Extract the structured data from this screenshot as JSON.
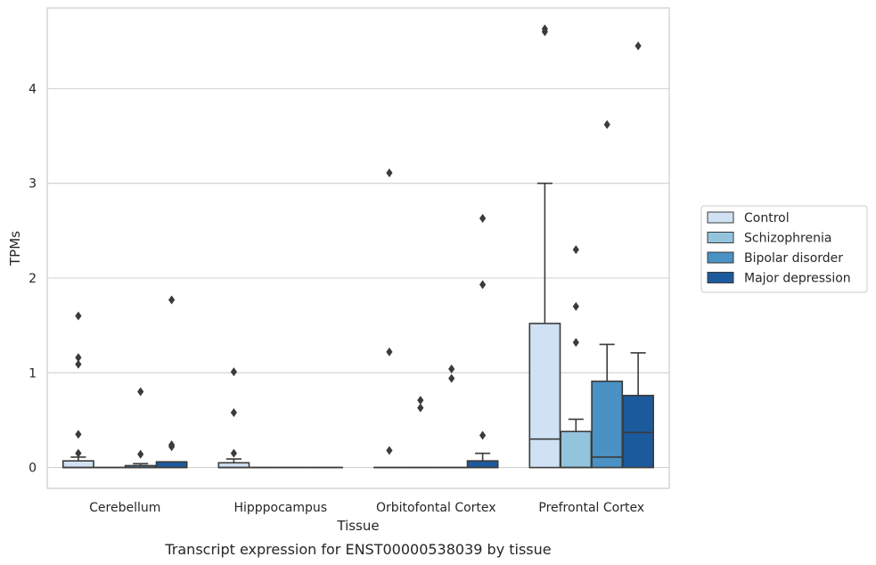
{
  "chart_data": {
    "type": "box",
    "title": "",
    "caption": "Transcript expression for ENST00000538039 by tissue",
    "xlabel": "Tissue",
    "ylabel": "TPMs",
    "ylim": [
      -0.22,
      4.85
    ],
    "yticks": [
      0,
      1,
      2,
      3,
      4
    ],
    "grid": "horizontal",
    "legend_position": "right",
    "categories": [
      "Cerebellum",
      "Hipppocampus",
      "Orbitofontal Cortex",
      "Prefrontal Cortex"
    ],
    "series": [
      {
        "name": "Control",
        "color": "#cfe1f2",
        "boxes": [
          {
            "q1": 0,
            "median": 0,
            "q3": 0.07,
            "whisker_low": 0,
            "whisker_high": 0.11,
            "outliers": [
              1.16,
              1.09,
              1.6,
              0.35,
              0.15
            ]
          },
          {
            "q1": 0,
            "median": 0,
            "q3": 0.05,
            "whisker_low": 0,
            "whisker_high": 0.09,
            "outliers": [
              1.01,
              0.58,
              0.15
            ]
          },
          {
            "q1": 0,
            "median": 0,
            "q3": 0,
            "whisker_low": 0,
            "whisker_high": 0,
            "outliers": [
              3.11,
              1.22,
              0.18
            ]
          },
          {
            "q1": 0,
            "median": 0.3,
            "q3": 1.52,
            "whisker_low": 0,
            "whisker_high": 3.0,
            "outliers": [
              4.63,
              4.6
            ]
          }
        ]
      },
      {
        "name": "Schizophrenia",
        "color": "#93c4de",
        "boxes": [
          {
            "q1": 0,
            "median": 0,
            "q3": 0,
            "whisker_low": 0,
            "whisker_high": 0,
            "outliers": []
          },
          {
            "q1": 0,
            "median": 0,
            "q3": 0,
            "whisker_low": 0,
            "whisker_high": 0,
            "outliers": []
          },
          {
            "q1": 0,
            "median": 0,
            "q3": 0,
            "whisker_low": 0,
            "whisker_high": 0,
            "outliers": [
              0.71,
              0.63
            ]
          },
          {
            "q1": 0,
            "median": 0,
            "q3": 0.38,
            "whisker_low": 0,
            "whisker_high": 0.51,
            "outliers": [
              2.3,
              1.7,
              1.32
            ]
          }
        ]
      },
      {
        "name": "Bipolar disorder",
        "color": "#4a91c4",
        "boxes": [
          {
            "q1": 0,
            "median": 0,
            "q3": 0.02,
            "whisker_low": 0,
            "whisker_high": 0.04,
            "outliers": [
              0.8,
              0.14
            ]
          },
          {
            "q1": 0,
            "median": 0,
            "q3": 0,
            "whisker_low": 0,
            "whisker_high": 0,
            "outliers": []
          },
          {
            "q1": 0,
            "median": 0,
            "q3": 0,
            "whisker_low": 0,
            "whisker_high": 0,
            "outliers": [
              1.04,
              0.94
            ]
          },
          {
            "q1": 0,
            "median": 0.11,
            "q3": 0.91,
            "whisker_low": 0,
            "whisker_high": 1.3,
            "outliers": [
              3.62
            ]
          }
        ]
      },
      {
        "name": "Major depression",
        "color": "#1c5a9e",
        "boxes": [
          {
            "q1": 0,
            "median": 0,
            "q3": 0.06,
            "whisker_low": 0,
            "whisker_high": 0.06,
            "outliers": [
              1.77,
              0.24,
              0.22
            ]
          },
          {
            "q1": 0,
            "median": 0,
            "q3": 0,
            "whisker_low": 0,
            "whisker_high": 0,
            "outliers": []
          },
          {
            "q1": 0,
            "median": 0,
            "q3": 0.07,
            "whisker_low": 0,
            "whisker_high": 0.15,
            "outliers": [
              2.63,
              1.93,
              0.34
            ]
          },
          {
            "q1": 0,
            "median": 0.37,
            "q3": 0.76,
            "whisker_low": 0,
            "whisker_high": 1.21,
            "outliers": [
              4.45
            ]
          }
        ]
      }
    ]
  }
}
